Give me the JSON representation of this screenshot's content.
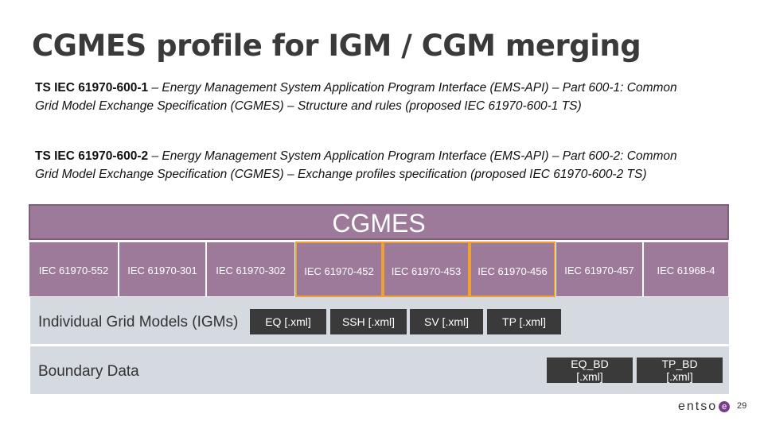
{
  "title": "CGMES profile for IGM / CGM merging",
  "paragraphs": [
    {
      "code": "TS IEC 61970-600-1",
      "text": " – Energy Management System Application Program Interface (EMS-API) – Part 600-1:  Common Grid Model Exchange Specification (CGMES) – Structure and rules (proposed IEC 61970-600-1 TS)"
    },
    {
      "code": "TS IEC 61970-600-2",
      "text": " – Energy Management System Application Program Interface (EMS-API) – Part 600-2:  Common Grid Model Exchange Specification (CGMES) – Exchange profiles specification (proposed IEC 61970-600-2 TS)"
    }
  ],
  "diagram": {
    "header": "CGMES",
    "standards": [
      "IEC 61970-552",
      "IEC 61970-301",
      "IEC 61970-302",
      "IEC 61970-452",
      "IEC 61970-453",
      "IEC 61970-456",
      "IEC 61970-457",
      "IEC 61968-4"
    ],
    "igm_label": "Individual Grid Models (IGMs)",
    "igm_files": [
      "EQ [.xml]",
      "SSH [.xml]",
      "SV [.xml]",
      "TP [.xml]"
    ],
    "boundary_label": "Boundary Data",
    "boundary_files": [
      {
        "line1": "EQ_BD",
        "line2": "[.xml]"
      },
      {
        "line1": "TP_BD",
        "line2": "[.xml]"
      }
    ]
  },
  "footer": {
    "logo_text": "entso",
    "logo_mark": "e",
    "page_number": "29"
  }
}
